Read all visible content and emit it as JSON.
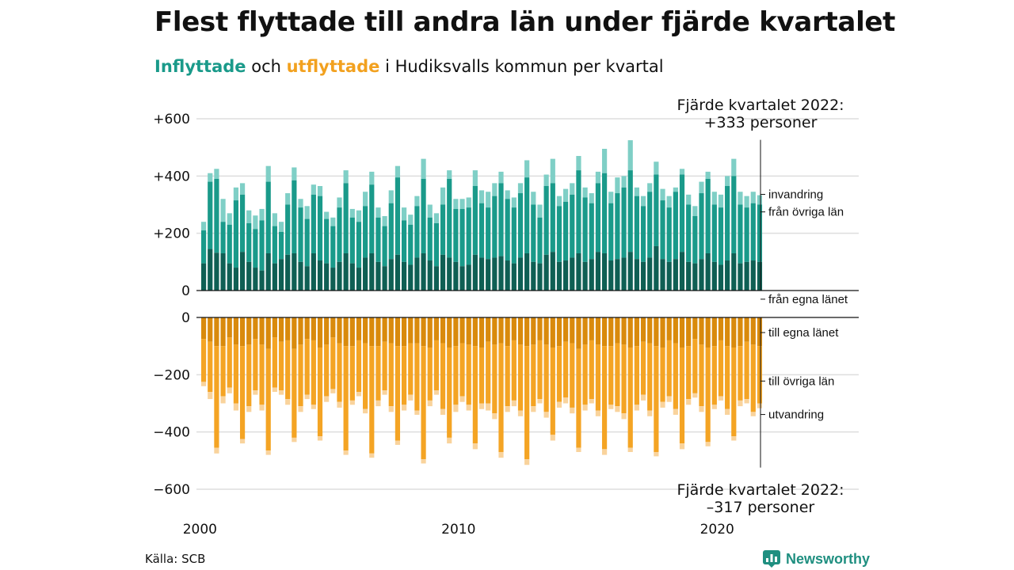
{
  "title": "Flest flyttade till andra län under fjärde kvartalet",
  "subtitle": {
    "in_word": "Inflyttade",
    "and_word": " och ",
    "out_word": "utflyttade",
    "rest": " i Hudiksvalls kommun per kvartal"
  },
  "colors": {
    "in_egna": "#0f5f54",
    "in_ovriga": "#1a9a8a",
    "in_invandring": "#7fcfc6",
    "out_egna": "#d98a0c",
    "out_ovriga": "#f4a424",
    "out_utvandring": "#f9d39c",
    "grid": "#dddddd",
    "brand": "#1f8f80"
  },
  "source": "Källa: SCB",
  "brand": "Newsworthy",
  "chart_data": {
    "type": "bar",
    "stacked": true,
    "diverging": true,
    "y_ticks": [
      "+600",
      "+400",
      "+200",
      "0"
    ],
    "y_ticks_bottom": [
      "0",
      "−200",
      "−400",
      "−600"
    ],
    "x_ticks": [
      "2000",
      "2010",
      "2020"
    ],
    "ylim_top": [
      0,
      600
    ],
    "ylim_bottom": [
      -600,
      0
    ],
    "grid": true,
    "start_year": 2000,
    "in_series_labels": [
      "från egna länet",
      "från övriga län",
      "invandring"
    ],
    "out_series_labels": [
      "till egna länet",
      "till övriga län",
      "utvandring"
    ],
    "annotation_top": [
      "Fjärde kvartalet 2022:",
      "+333 personer"
    ],
    "annotation_bottom": [
      "Fjärde kvartalet 2022:",
      "–317 personer"
    ],
    "inflow_totals": [
      240,
      410,
      425,
      320,
      270,
      360,
      375,
      280,
      262,
      285,
      435,
      270,
      240,
      340,
      430,
      320,
      295,
      370,
      365,
      275,
      255,
      325,
      420,
      285,
      280,
      345,
      415,
      290,
      260,
      350,
      435,
      290,
      265,
      330,
      460,
      300,
      270,
      360,
      420,
      320,
      320,
      325,
      420,
      350,
      345,
      375,
      415,
      350,
      325,
      375,
      455,
      345,
      300,
      405,
      460,
      330,
      355,
      375,
      470,
      360,
      340,
      415,
      495,
      345,
      395,
      400,
      525,
      360,
      330,
      375,
      450,
      355,
      330,
      360,
      425,
      335,
      295,
      380,
      415,
      345,
      335,
      400,
      460,
      345,
      330,
      345,
      333
    ],
    "in_egna": [
      95,
      145,
      132,
      130,
      95,
      80,
      135,
      100,
      80,
      70,
      130,
      95,
      110,
      125,
      130,
      100,
      85,
      130,
      105,
      95,
      80,
      100,
      130,
      95,
      80,
      115,
      130,
      100,
      85,
      110,
      125,
      100,
      90,
      115,
      130,
      105,
      85,
      125,
      115,
      100,
      85,
      90,
      125,
      115,
      110,
      115,
      120,
      105,
      95,
      115,
      130,
      100,
      95,
      125,
      135,
      100,
      105,
      115,
      130,
      100,
      110,
      135,
      130,
      105,
      110,
      115,
      135,
      110,
      100,
      115,
      155,
      110,
      100,
      110,
      135,
      100,
      95,
      110,
      130,
      100,
      90,
      105,
      130,
      95,
      100,
      105,
      100
    ],
    "in_ovriga": [
      210,
      380,
      390,
      240,
      230,
      315,
      335,
      235,
      215,
      245,
      380,
      225,
      205,
      300,
      385,
      290,
      250,
      335,
      330,
      250,
      225,
      290,
      375,
      255,
      240,
      295,
      370,
      255,
      225,
      305,
      395,
      245,
      230,
      295,
      390,
      255,
      235,
      300,
      390,
      285,
      285,
      290,
      365,
      305,
      290,
      330,
      375,
      320,
      290,
      340,
      395,
      300,
      255,
      365,
      375,
      295,
      310,
      335,
      420,
      325,
      305,
      375,
      410,
      305,
      340,
      360,
      420,
      330,
      295,
      345,
      405,
      315,
      290,
      345,
      405,
      300,
      260,
      340,
      390,
      300,
      290,
      365,
      400,
      300,
      290,
      305,
      300
    ],
    "outflow_totals": [
      -240,
      -285,
      -475,
      -300,
      -265,
      -325,
      -440,
      -330,
      -270,
      -325,
      -480,
      -260,
      -270,
      -305,
      -435,
      -330,
      -285,
      -320,
      -430,
      -295,
      -265,
      -315,
      -480,
      -305,
      -275,
      -335,
      -490,
      -310,
      -270,
      -330,
      -445,
      -325,
      -290,
      -340,
      -510,
      -310,
      -270,
      -340,
      -440,
      -330,
      -295,
      -325,
      -460,
      -320,
      -325,
      -355,
      -490,
      -330,
      -310,
      -345,
      -515,
      -330,
      -300,
      -350,
      -430,
      -315,
      -300,
      -335,
      -470,
      -325,
      -300,
      -345,
      -480,
      -320,
      -330,
      -355,
      -470,
      -325,
      -290,
      -345,
      -485,
      -315,
      -295,
      -340,
      -460,
      -305,
      -280,
      -330,
      -450,
      -320,
      -290,
      -340,
      -430,
      -310,
      -300,
      -345,
      -317
    ],
    "out_egna": [
      -75,
      -85,
      -100,
      -100,
      -70,
      -95,
      -100,
      -95,
      -75,
      -95,
      -110,
      -70,
      -85,
      -80,
      -110,
      -95,
      -75,
      -80,
      -105,
      -95,
      -70,
      -90,
      -100,
      -100,
      -80,
      -90,
      -100,
      -100,
      -85,
      -90,
      -100,
      -100,
      -90,
      -90,
      -100,
      -105,
      -80,
      -90,
      -105,
      -100,
      -90,
      -95,
      -100,
      -105,
      -85,
      -95,
      -90,
      -100,
      -80,
      -95,
      -100,
      -95,
      -80,
      -95,
      -105,
      -100,
      -85,
      -90,
      -110,
      -95,
      -80,
      -95,
      -100,
      -100,
      -90,
      -95,
      -105,
      -100,
      -85,
      -90,
      -100,
      -105,
      -80,
      -90,
      -105,
      -100,
      -75,
      -95,
      -105,
      -100,
      -80,
      -100,
      -105,
      -100,
      -85,
      -95,
      -100
    ],
    "out_ovriga": [
      -225,
      -260,
      -455,
      -275,
      -245,
      -300,
      -425,
      -310,
      -255,
      -305,
      -465,
      -245,
      -255,
      -285,
      -420,
      -310,
      -270,
      -305,
      -415,
      -275,
      -250,
      -295,
      -465,
      -290,
      -260,
      -320,
      -475,
      -290,
      -255,
      -310,
      -430,
      -305,
      -270,
      -325,
      -495,
      -290,
      -255,
      -320,
      -420,
      -305,
      -275,
      -305,
      -440,
      -300,
      -300,
      -335,
      -470,
      -310,
      -290,
      -325,
      -495,
      -310,
      -285,
      -330,
      -410,
      -295,
      -280,
      -315,
      -455,
      -305,
      -285,
      -325,
      -460,
      -305,
      -310,
      -335,
      -455,
      -305,
      -270,
      -325,
      -470,
      -295,
      -275,
      -320,
      -440,
      -285,
      -265,
      -310,
      -435,
      -305,
      -275,
      -320,
      -415,
      -290,
      -285,
      -330,
      -300
    ]
  }
}
